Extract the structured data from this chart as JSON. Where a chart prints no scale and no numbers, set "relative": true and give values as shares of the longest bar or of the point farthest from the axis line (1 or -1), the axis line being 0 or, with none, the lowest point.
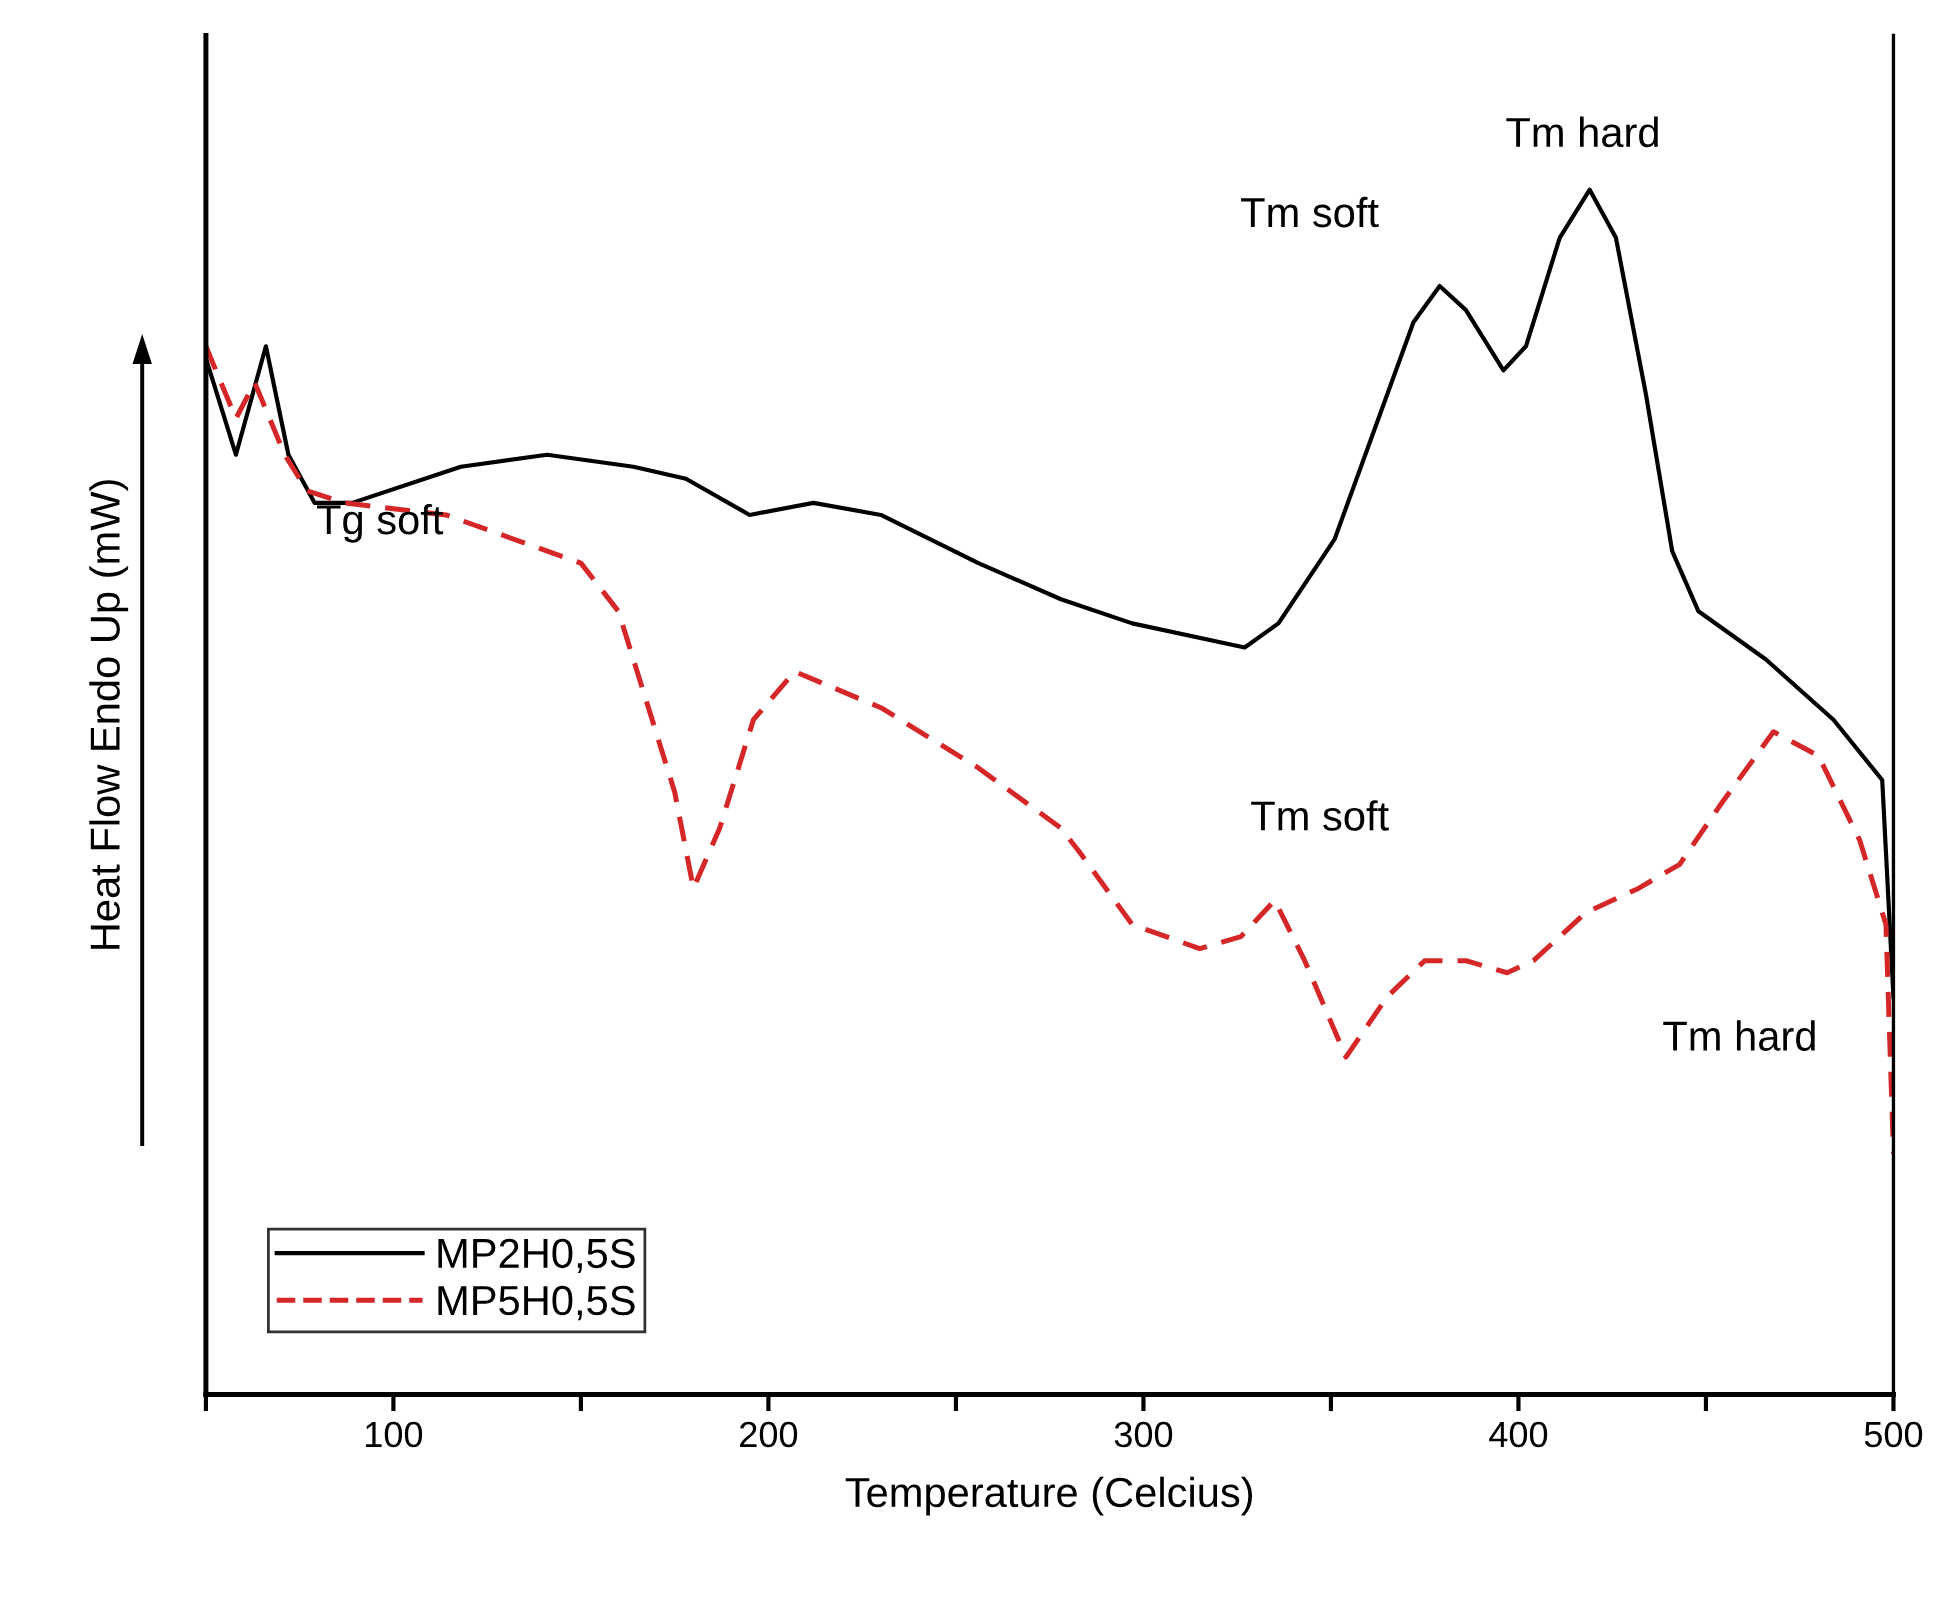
{
  "chart_data": {
    "type": "line",
    "relative": true,
    "xlabel": "Temperature (Celcius)",
    "ylabel": "Heat Flow Endo Up (mW)",
    "xlim": [
      50,
      500
    ],
    "xticks": [
      {
        "value": 50,
        "label": null
      },
      100,
      {
        "value": 150,
        "label": null
      },
      200,
      {
        "value": 250,
        "label": null
      },
      300,
      {
        "value": 350,
        "label": null
      },
      400,
      {
        "value": 450,
        "label": null
      },
      500
    ],
    "legend": "bottom left",
    "grid": false,
    "series": [
      {
        "name": "MP2H0,5S",
        "color": "#000000",
        "line_style": "solid",
        "x": [
          50,
          58,
          66,
          72,
          79,
          89,
          118,
          141,
          164,
          178,
          195,
          212,
          230,
          256,
          278,
          297,
          327,
          336,
          351,
          365,
          372,
          379,
          386,
          396,
          402,
          411,
          419,
          426,
          434,
          441,
          448,
          466,
          484,
          497,
          500
        ],
        "values": [
          0.86,
          0.78,
          0.87,
          0.78,
          0.74,
          0.74,
          0.77,
          0.78,
          0.77,
          0.76,
          0.73,
          0.74,
          0.73,
          0.69,
          0.66,
          0.64,
          0.62,
          0.64,
          0.71,
          0.83,
          0.89,
          0.92,
          0.9,
          0.85,
          0.87,
          0.96,
          1.0,
          0.96,
          0.83,
          0.7,
          0.65,
          0.61,
          0.56,
          0.51,
          0.33
        ]
      },
      {
        "name": "MP5H0,5S",
        "color": "#d62728",
        "line_style": "dashed",
        "x": [
          50,
          58,
          63,
          71,
          77,
          87,
          114,
          132,
          150,
          160,
          167,
          175,
          180,
          187,
          196,
          207,
          230,
          256,
          278,
          283,
          297,
          315,
          326,
          335,
          343,
          354,
          365,
          375,
          386,
          397,
          404,
          418,
          432,
          443,
          454,
          468,
          480,
          491,
          498,
          500
        ],
        "values": [
          0.87,
          0.81,
          0.84,
          0.78,
          0.75,
          0.74,
          0.73,
          0.71,
          0.69,
          0.65,
          0.58,
          0.5,
          0.42,
          0.47,
          0.56,
          0.6,
          0.57,
          0.52,
          0.47,
          0.45,
          0.39,
          0.37,
          0.38,
          0.41,
          0.36,
          0.28,
          0.33,
          0.36,
          0.36,
          0.35,
          0.36,
          0.4,
          0.42,
          0.44,
          0.49,
          0.55,
          0.53,
          0.46,
          0.39,
          0.2
        ]
      }
    ],
    "annotations": [
      "Tg soft",
      "Tm soft",
      "Tm hard",
      "Tm soft",
      "Tm hard"
    ]
  }
}
